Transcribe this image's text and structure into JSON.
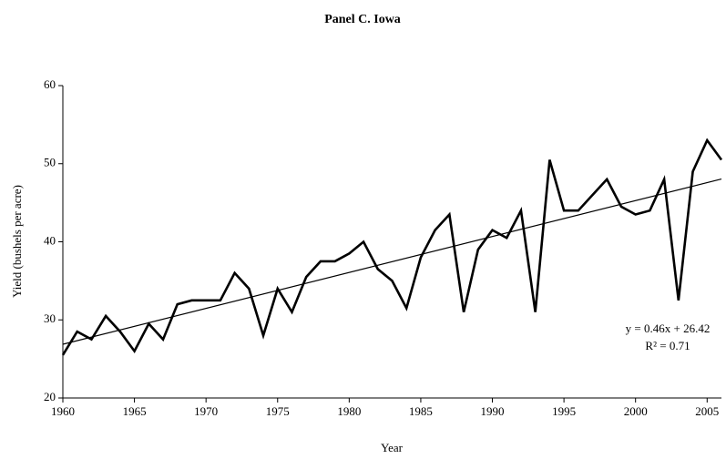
{
  "chart_data": {
    "type": "line",
    "title": "Panel C.  Iowa",
    "x_label": "Year",
    "y_label": "Yield (bushels per acre)",
    "x": [
      1960,
      1961,
      1962,
      1963,
      1964,
      1965,
      1966,
      1967,
      1968,
      1969,
      1970,
      1971,
      1972,
      1973,
      1974,
      1975,
      1976,
      1977,
      1978,
      1979,
      1980,
      1981,
      1982,
      1983,
      1984,
      1985,
      1986,
      1987,
      1988,
      1989,
      1990,
      1991,
      1992,
      1993,
      1994,
      1995,
      1996,
      1997,
      1998,
      1999,
      2000,
      2001,
      2002,
      2003,
      2004,
      2005,
      2006
    ],
    "series": [
      {
        "color": "#000000",
        "values": [
          25.5,
          28.5,
          27.5,
          30.5,
          28.5,
          26,
          29.5,
          27.5,
          32,
          32.5,
          32.5,
          32.5,
          36,
          34,
          28,
          34,
          31,
          35.5,
          37.5,
          37.5,
          38.5,
          40,
          36.5,
          35,
          31.5,
          38,
          41.5,
          43.5,
          31,
          39,
          41.5,
          40.5,
          44,
          31,
          50.5,
          44,
          44,
          46,
          48,
          44.5,
          43.5,
          44,
          48,
          32.5,
          49,
          53,
          50.5
        ]
      }
    ],
    "trendline": {
      "equation_label": "y = 0.46x + 26.42",
      "r_squared_label": "R² = 0.71",
      "slope": 0.46,
      "intercept": 26.42,
      "color": "#000000"
    },
    "xlim": [
      1960,
      2006
    ],
    "xticks": [
      1960,
      1965,
      1970,
      1975,
      1980,
      1985,
      1990,
      1995,
      2000,
      2005
    ],
    "ylim": [
      20,
      60
    ],
    "yticks": [
      20,
      30,
      40,
      50,
      60
    ],
    "grid": false
  }
}
